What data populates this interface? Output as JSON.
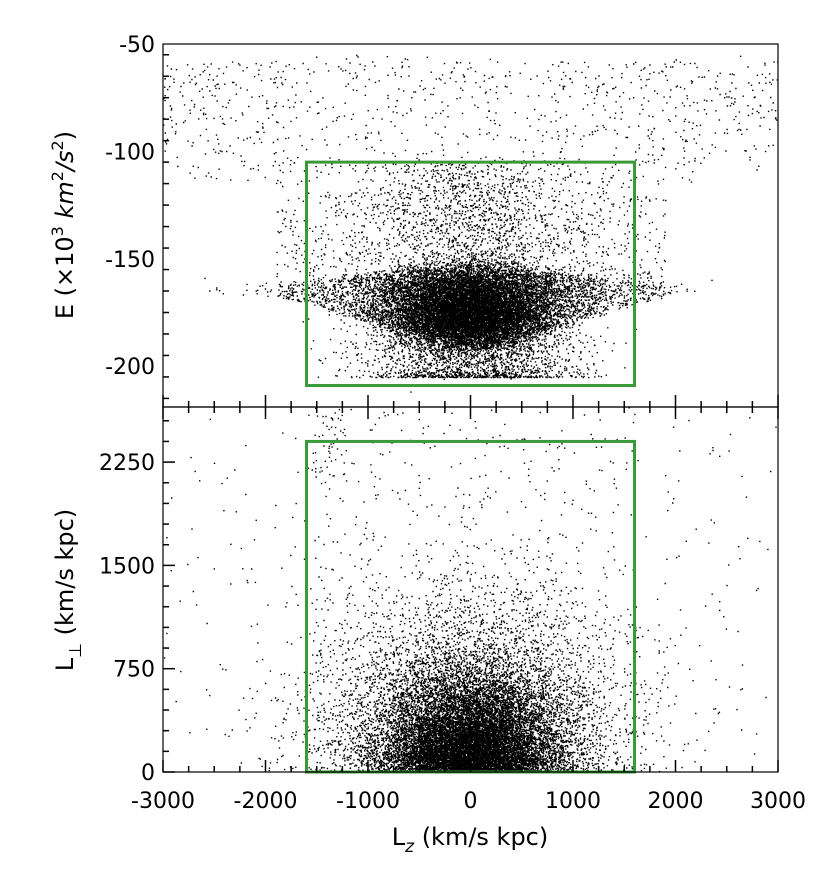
{
  "chart_data": [
    {
      "type": "scatter",
      "panel": "top",
      "xlim": [
        -3000,
        3000
      ],
      "ylim": [
        -219,
        -50
      ],
      "yticks": [
        -50,
        -100,
        -150,
        -200
      ],
      "ytick_labels": [
        "-50",
        "-100",
        "-150",
        "-200"
      ],
      "ylabel": "E (×10³ km²/s²)",
      "ylabel_parts": {
        "lead": "E (×10",
        "exp": "3",
        "mid": " km",
        "exp2": "2",
        "tail": "/s",
        "exp3": "2",
        "close": ")"
      },
      "selection_box": {
        "x": [
          -1600,
          1600
        ],
        "y": [
          -209,
          -105
        ],
        "color": "#3a9a3a"
      },
      "point_color": "#000000",
      "distribution": "dense clump centred near Lz=0, E≈-172; diamond/wedge shape spreading to Lz≈±1800 at E≈-165, thinning toward E≈-100 with sparse halo points up to -55 across the full Lz range"
    },
    {
      "type": "scatter",
      "panel": "bottom",
      "xlim": [
        -3000,
        3000
      ],
      "ylim": [
        0,
        2650
      ],
      "xticks": [
        -3000,
        -2000,
        -1000,
        0,
        1000,
        2000,
        3000
      ],
      "xtick_labels": [
        "-3000",
        "-2000",
        "-1000",
        "0",
        "1000",
        "2000",
        "3000"
      ],
      "yticks": [
        0,
        750,
        1500,
        2250
      ],
      "ytick_labels": [
        "0",
        "750",
        "1500",
        "2250"
      ],
      "ylabel": "L⊥ (km/s kpc)",
      "ylabel_parts": {
        "lead": "L",
        "sub": "⊥",
        "tail": " (km/s kpc)"
      },
      "xlabel": "Lz (km/s kpc)",
      "xlabel_parts": {
        "lead": "L",
        "sub": "z",
        "tail": " (km/s kpc)"
      },
      "selection_box": {
        "x": [
          -1600,
          1600
        ],
        "y": [
          0,
          2400
        ],
        "color": "#3a9a3a"
      },
      "point_color": "#000000",
      "distribution": "dense concentration near Lz=0, L⊥≈0–800 (peak ≈250), spreading to Lz≈±1600; sparse scatter up to L⊥≈2650 across Lz ±3000"
    }
  ]
}
